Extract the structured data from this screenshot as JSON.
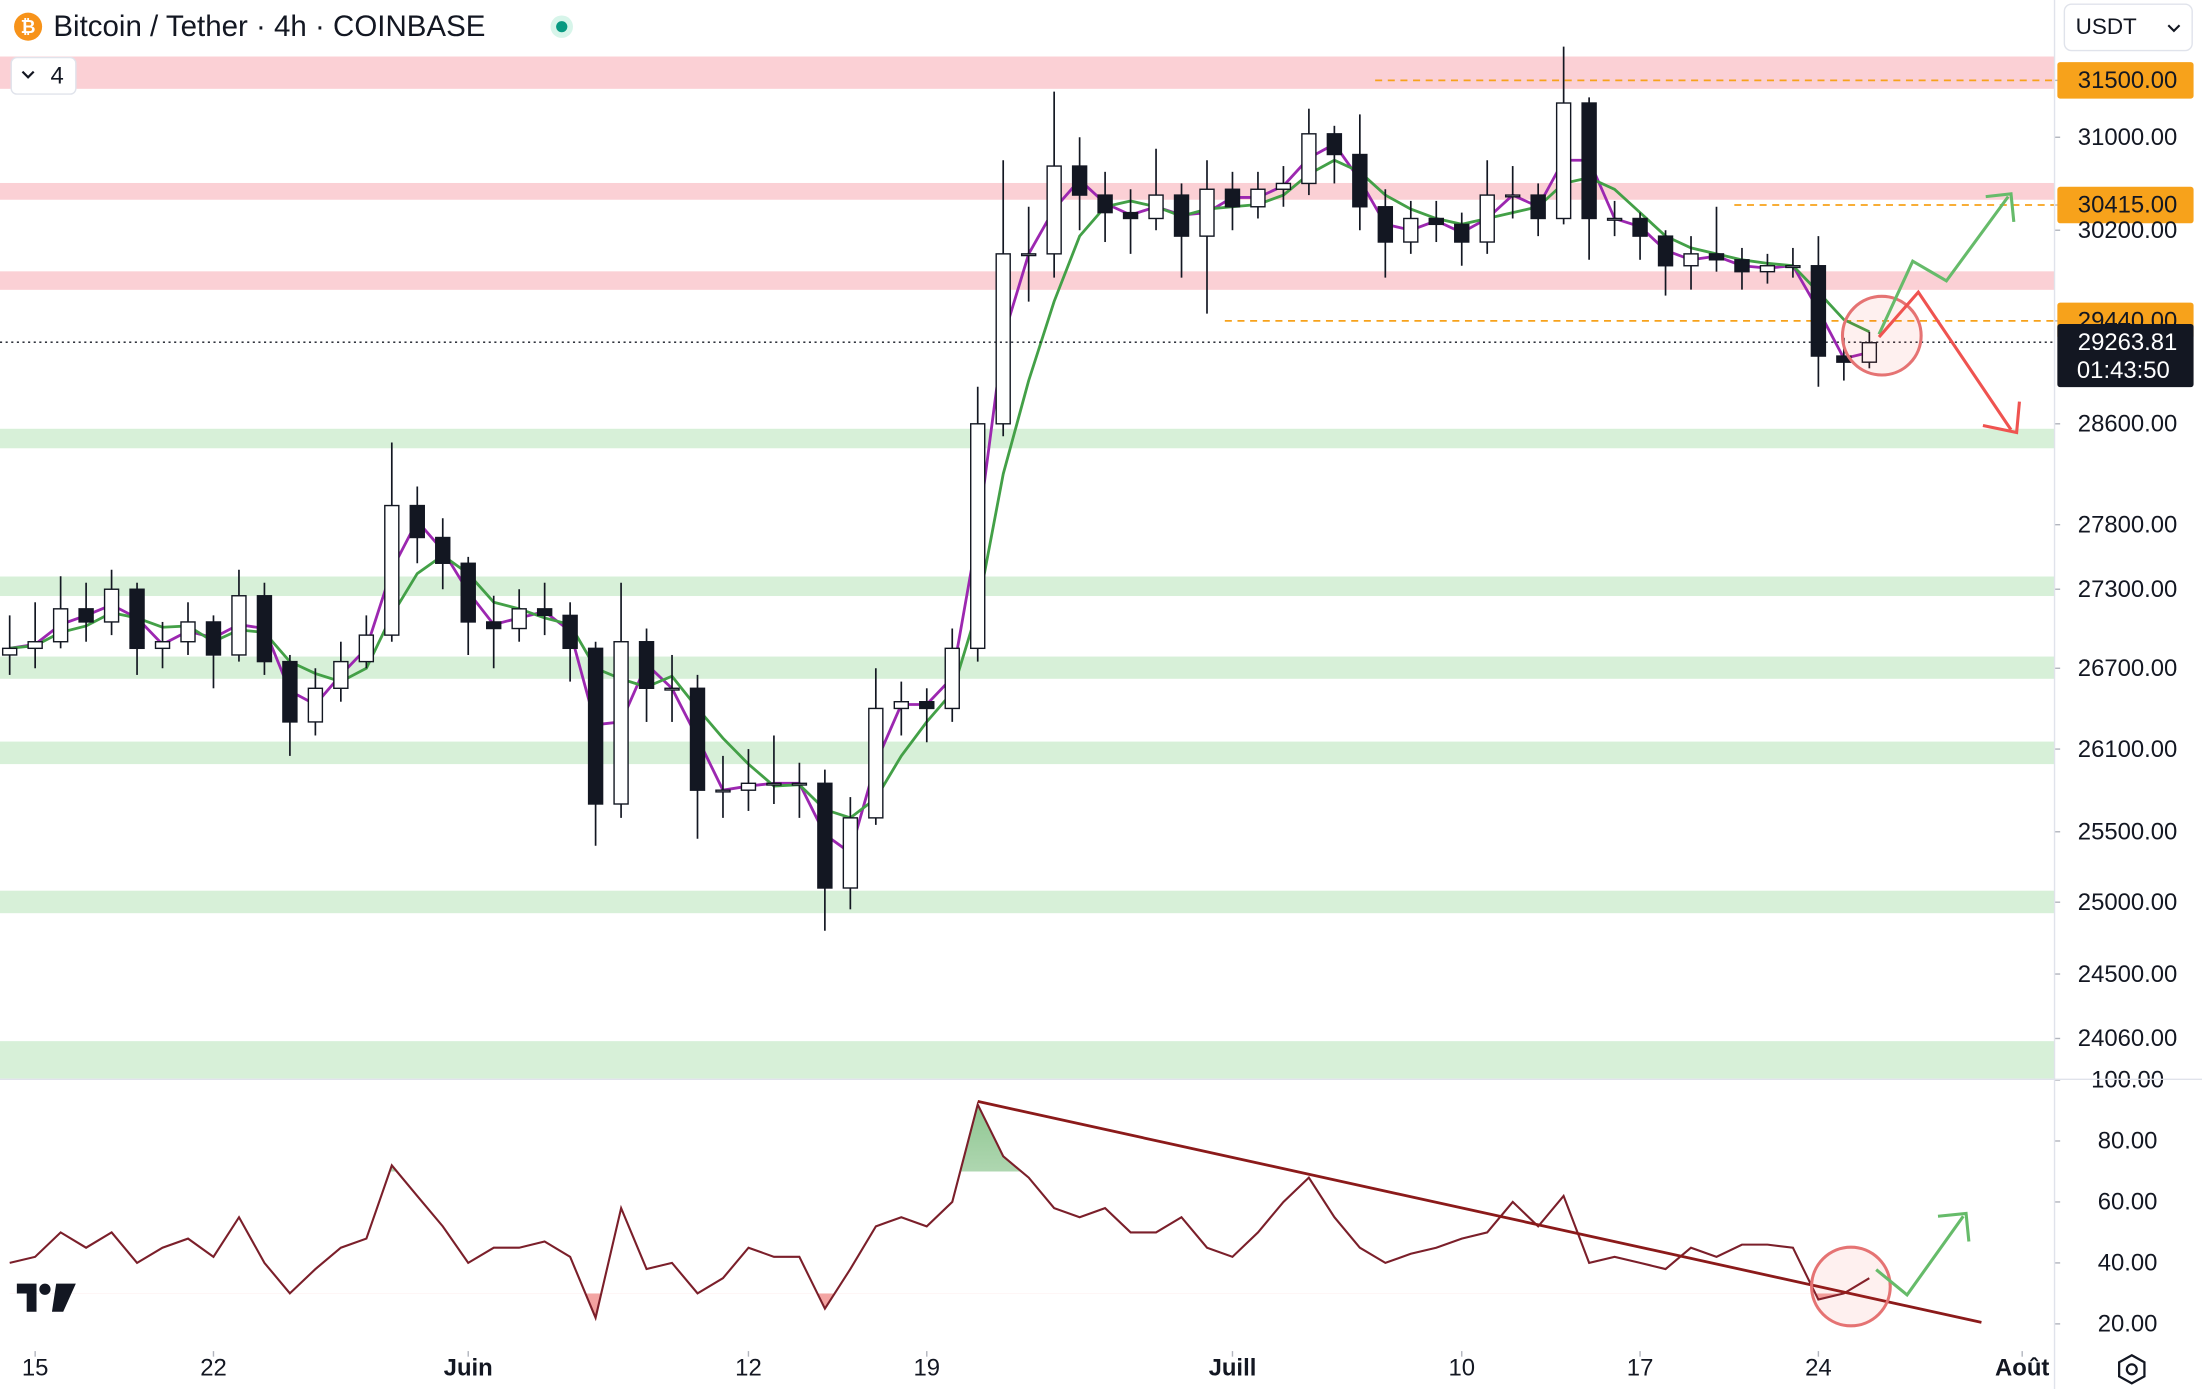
{
  "chart_data": [
    {
      "type": "candlestick",
      "title": "Bitcoin / Tether · 4h · COINBASE",
      "indicators": 4,
      "currency": "USDT",
      "x": [
        -1,
        0,
        1,
        2,
        3,
        4,
        5,
        6,
        7,
        8,
        9,
        10,
        11,
        12,
        13,
        14,
        15,
        16,
        17,
        18,
        19,
        20,
        21,
        22,
        23,
        24,
        25,
        26,
        27,
        28,
        29,
        30,
        31,
        32,
        33,
        34,
        35,
        36,
        37,
        38,
        39,
        40,
        41,
        42,
        43,
        44,
        45,
        46,
        47,
        48,
        49,
        50,
        51,
        52,
        53,
        54,
        55,
        56,
        57,
        58,
        59,
        60,
        61,
        62,
        63,
        64,
        65,
        66,
        67,
        68,
        69,
        70,
        71,
        72
      ],
      "open": [
        26800,
        26850,
        26900,
        27150,
        27050,
        27300,
        26850,
        26900,
        27050,
        26800,
        27250,
        26750,
        26300,
        26550,
        26750,
        26950,
        27950,
        27700,
        27500,
        27050,
        27000,
        27150,
        27100,
        26850,
        25700,
        26900,
        26550,
        26550,
        25800,
        25800,
        25850,
        25850,
        25850,
        25100,
        25600,
        26400,
        26450,
        26400,
        26850,
        28600,
        30000,
        30000,
        30750,
        30500,
        30350,
        30300,
        30500,
        30150,
        30550,
        30400,
        30550,
        30600,
        31030,
        30850,
        30400,
        30100,
        30300,
        30250,
        30100,
        30500,
        30500,
        30300,
        31300,
        30300,
        30300,
        30150,
        29900,
        30000,
        29950,
        29850,
        29900,
        29900,
        29150,
        29100
      ],
      "high": [
        27100,
        27200,
        27400,
        27350,
        27450,
        27350,
        27050,
        27200,
        27100,
        27450,
        27350,
        26800,
        26700,
        26900,
        27100,
        28450,
        28100,
        27850,
        27550,
        27250,
        27300,
        27350,
        27200,
        26900,
        27350,
        27000,
        26800,
        26650,
        26050,
        26100,
        26200,
        26000,
        25950,
        25750,
        26700,
        26600,
        26550,
        27000,
        28900,
        30800,
        30400,
        31400,
        31000,
        30700,
        30550,
        30900,
        30600,
        30800,
        30700,
        30700,
        30750,
        31250,
        31100,
        31200,
        30550,
        30450,
        30450,
        30350,
        30800,
        30750,
        30600,
        31800,
        31350,
        30450,
        30350,
        30200,
        30150,
        30400,
        30050,
        30000,
        30050,
        30150,
        29300,
        29350
      ],
      "low": [
        26650,
        26700,
        26850,
        26900,
        26950,
        26650,
        26700,
        26800,
        26550,
        26750,
        26650,
        26050,
        26200,
        26450,
        26700,
        26900,
        27500,
        27300,
        26800,
        26700,
        26900,
        26950,
        26600,
        25400,
        25600,
        26300,
        26300,
        25450,
        25600,
        25650,
        25700,
        25600,
        24800,
        24950,
        25550,
        26200,
        26150,
        26300,
        26750,
        28500,
        29600,
        29800,
        30200,
        30100,
        30000,
        30200,
        29800,
        29500,
        30200,
        30300,
        30400,
        30500,
        30600,
        30200,
        29800,
        30000,
        30100,
        29900,
        30000,
        30300,
        30150,
        30250,
        29950,
        30150,
        29950,
        29650,
        29700,
        29850,
        29700,
        29750,
        29800,
        28900,
        28950,
        29050
      ],
      "close": [
        26850,
        26900,
        27150,
        27050,
        27300,
        26850,
        26900,
        27050,
        26800,
        27250,
        26750,
        26300,
        26550,
        26750,
        26950,
        27950,
        27700,
        27500,
        27050,
        27000,
        27150,
        27100,
        26850,
        25700,
        26900,
        26550,
        26550,
        25800,
        25800,
        25850,
        25850,
        25850,
        25100,
        25600,
        26400,
        26450,
        26400,
        26850,
        28600,
        30000,
        30000,
        30750,
        30500,
        30350,
        30300,
        30500,
        30150,
        30550,
        30400,
        30550,
        30600,
        31030,
        30850,
        30400,
        30100,
        30300,
        30250,
        30100,
        30500,
        30500,
        30300,
        31300,
        30300,
        30300,
        30150,
        29900,
        30000,
        29950,
        29850,
        29900,
        29900,
        29150,
        29100,
        29260
      ],
      "series": [
        {
          "color": "#9c27b0",
          "values": [
            26850,
            26880,
            27030,
            27100,
            27180,
            27080,
            26880,
            26980,
            26930,
            27030,
            27000,
            26530,
            26430,
            26650,
            26850,
            27450,
            27830,
            27600,
            27280,
            27030,
            27080,
            27130,
            26980,
            26280,
            26300,
            26730,
            26550,
            26180,
            25800,
            25830,
            25850,
            25850,
            25480,
            25350,
            26000,
            26430,
            26430,
            26630,
            27730,
            29300,
            30000,
            30380,
            30630,
            30430,
            30330,
            30400,
            30330,
            30350,
            30480,
            30480,
            30580,
            30820,
            30940,
            30630,
            30250,
            30200,
            30280,
            30180,
            30300,
            30500,
            30400,
            30800,
            30800,
            30300,
            30230,
            30030,
            29950,
            29980,
            29900,
            29880,
            29900,
            29530,
            29130,
            29180
          ]
        },
        {
          "color": "#43a047",
          "values": [
            26850,
            26870,
            26970,
            27020,
            27120,
            27080,
            27010,
            27020,
            26900,
            26990,
            26970,
            26750,
            26660,
            26600,
            26700,
            27100,
            27420,
            27560,
            27420,
            27200,
            27150,
            27080,
            27030,
            26700,
            26620,
            26560,
            26640,
            26400,
            26180,
            25990,
            25830,
            25840,
            25660,
            25600,
            25740,
            26050,
            26300,
            26520,
            27150,
            28200,
            28950,
            29600,
            30150,
            30400,
            30450,
            30400,
            30320,
            30380,
            30400,
            30420,
            30500,
            30680,
            30800,
            30700,
            30500,
            30380,
            30300,
            30250,
            30300,
            30350,
            30400,
            30600,
            30650,
            30550,
            30350,
            30150,
            30050,
            30000,
            29950,
            29920,
            29900,
            29680,
            29450,
            29350
          ]
        }
      ],
      "xlim": [
        -1.38,
        79.27
      ],
      "xticks": [
        {
          "value": 0,
          "label": "15"
        },
        {
          "value": 7,
          "label": "22"
        },
        {
          "value": 17,
          "label": "Juin"
        },
        {
          "value": 28,
          "label": "12"
        },
        {
          "value": 35,
          "label": "19"
        },
        {
          "value": 47,
          "label": "Juill"
        },
        {
          "value": 56,
          "label": "10"
        },
        {
          "value": 63,
          "label": "17"
        },
        {
          "value": 70,
          "label": "24"
        },
        {
          "value": 78,
          "label": "Août"
        }
      ],
      "ylim": [
        23790,
        32220
      ],
      "log": true,
      "yticks": [
        {
          "value": 31500,
          "label": "31500.00"
        },
        {
          "value": 31000,
          "label": "31000.00"
        },
        {
          "value": 30415,
          "label": "30415.00"
        },
        {
          "value": 30200,
          "label": "30200.00"
        },
        {
          "value": 29440,
          "label": "29440.00"
        },
        {
          "value": 28600,
          "label": "28600.00"
        },
        {
          "value": 27800,
          "label": "27800.00"
        },
        {
          "value": 27300,
          "label": "27300.00"
        },
        {
          "value": 26700,
          "label": "26700.00"
        },
        {
          "value": 26100,
          "label": "26100.00"
        },
        {
          "value": 25500,
          "label": "25500.00"
        },
        {
          "value": 25000,
          "label": "25000.00"
        },
        {
          "value": 24500,
          "label": "24500.00"
        },
        {
          "value": 24060,
          "label": "24060.00"
        }
      ],
      "zones": [
        {
          "from": 31425,
          "to": 31712,
          "color": "#fbd0d5"
        },
        {
          "from": 30460,
          "to": 30604,
          "color": "#fbd0d5"
        },
        {
          "from": 29698,
          "to": 29853,
          "color": "#fbd0d5"
        },
        {
          "from": 28404,
          "to": 28560,
          "color": "#d7f0d8"
        },
        {
          "from": 27248,
          "to": 27398,
          "color": "#d7f0d8"
        },
        {
          "from": 26621,
          "to": 26788,
          "color": "#d7f0d8"
        },
        {
          "from": 25990,
          "to": 26155,
          "color": "#d7f0d8"
        },
        {
          "from": 24923,
          "to": 25081,
          "color": "#d7f0d8"
        },
        {
          "from": 23786,
          "to": 24042,
          "color": "#d7f0d8"
        }
      ],
      "levels": [
        {
          "value": 31500,
          "from": 52.6,
          "color": "#f7a21b"
        },
        {
          "value": 30415,
          "from": 66.7,
          "color": "#f7a21b"
        },
        {
          "value": 29440,
          "from": 46.7,
          "color": "#f7a21b"
        }
      ],
      "last_price": 29263.81,
      "countdown": "01:43:50"
    },
    {
      "type": "line",
      "color": "#7b1f2a",
      "x": [
        -1,
        0,
        1,
        2,
        3,
        4,
        5,
        6,
        7,
        8,
        9,
        10,
        11,
        12,
        13,
        14,
        15,
        16,
        17,
        18,
        19,
        20,
        21,
        22,
        23,
        24,
        25,
        26,
        27,
        28,
        29,
        30,
        31,
        32,
        33,
        34,
        35,
        36,
        37,
        38,
        39,
        40,
        41,
        42,
        43,
        44,
        45,
        46,
        47,
        48,
        49,
        50,
        51,
        52,
        53,
        54,
        55,
        56,
        57,
        58,
        59,
        60,
        61,
        62,
        63,
        64,
        65,
        66,
        67,
        68,
        69,
        70,
        71,
        72
      ],
      "values": [
        40,
        42,
        50,
        45,
        50,
        40,
        45,
        48,
        42,
        55,
        40,
        30,
        38,
        45,
        48,
        72,
        62,
        52,
        40,
        45,
        45,
        47,
        42,
        22,
        58,
        38,
        40,
        30,
        35,
        45,
        42,
        42,
        25,
        38,
        52,
        55,
        52,
        60,
        92,
        75,
        68,
        58,
        55,
        58,
        50,
        50,
        55,
        45,
        42,
        50,
        60,
        68,
        55,
        45,
        40,
        43,
        45,
        48,
        50,
        60,
        52,
        62,
        40,
        42,
        40,
        38,
        45,
        42,
        46,
        46,
        45,
        28,
        30,
        35
      ],
      "ylim": [
        12,
        100
      ],
      "yticks": [
        {
          "value": 100,
          "label": "100.00"
        },
        {
          "value": 80,
          "label": "80.00"
        },
        {
          "value": 60,
          "label": "60.00"
        },
        {
          "value": 40,
          "label": "40.00"
        },
        {
          "value": 20,
          "label": "20.00"
        }
      ],
      "overbought": 70,
      "oversold": 30,
      "trendline": {
        "x": [
          37,
          76.4
        ],
        "y": [
          93,
          20.5
        ],
        "color": "#8b1a1a"
      }
    }
  ]
}
